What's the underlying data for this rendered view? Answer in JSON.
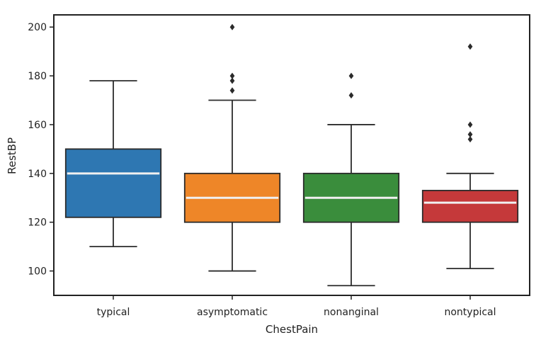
{
  "chart_data": {
    "type": "box",
    "xlabel": "ChestPain",
    "ylabel": "RestBP",
    "ylim": [
      90,
      205
    ],
    "yticks": [
      100,
      120,
      140,
      160,
      180,
      200
    ],
    "grid": false,
    "categories": [
      "typical",
      "asymptomatic",
      "nonanginal",
      "nontypical"
    ],
    "colors": [
      "#2e77b2",
      "#ee8628",
      "#3a8d3c",
      "#c5393a"
    ],
    "boxes": [
      {
        "category": "typical",
        "whisker_low": 110,
        "q1": 122,
        "median": 140,
        "q3": 150,
        "whisker_high": 178,
        "outliers": []
      },
      {
        "category": "asymptomatic",
        "whisker_low": 100,
        "q1": 120,
        "median": 130,
        "q3": 140,
        "whisker_high": 170,
        "outliers": [
          174,
          178,
          180,
          200
        ]
      },
      {
        "category": "nonanginal",
        "whisker_low": 94,
        "q1": 120,
        "median": 130,
        "q3": 140,
        "whisker_high": 160,
        "outliers": [
          172,
          180
        ]
      },
      {
        "category": "nontypical",
        "whisker_low": 101,
        "q1": 120,
        "median": 128,
        "q3": 133,
        "whisker_high": 140,
        "outliers": [
          154,
          156,
          160,
          192
        ]
      }
    ]
  }
}
